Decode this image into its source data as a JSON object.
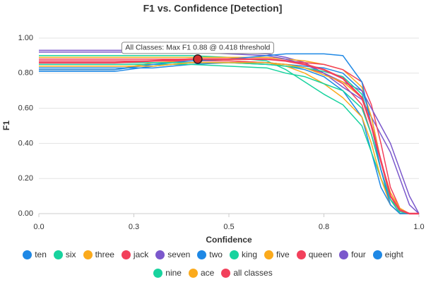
{
  "chart_data": {
    "type": "line",
    "title": "F1 vs. Confidence [Detection]",
    "x_label": "Confidence",
    "y_label": "F1",
    "x": [
      0,
      0.1,
      0.2,
      0.3,
      0.4,
      0.5,
      0.6,
      0.65,
      0.7,
      0.75,
      0.8,
      0.85,
      0.875,
      0.9,
      0.925,
      0.95,
      0.975,
      1.0
    ],
    "xlim": [
      0,
      1
    ],
    "ylim": [
      0,
      1
    ],
    "xticks": [
      {
        "value": 0,
        "label": "0.0"
      },
      {
        "value": 0.25,
        "label": "0.3"
      },
      {
        "value": 0.5,
        "label": "0.5"
      },
      {
        "value": 0.75,
        "label": "0.8"
      },
      {
        "value": 1,
        "label": "1.0"
      }
    ],
    "yticks": [
      {
        "value": 0,
        "label": "0.00"
      },
      {
        "value": 0.2,
        "label": "0.20"
      },
      {
        "value": 0.4,
        "label": "0.40"
      },
      {
        "value": 0.6,
        "label": "0.60"
      },
      {
        "value": 0.8,
        "label": "0.80"
      },
      {
        "value": 1,
        "label": "1.00"
      }
    ],
    "grid": true,
    "legend": "bottom",
    "series": [
      {
        "name": "ten",
        "color": "#1e88e5",
        "values": [
          0.81,
          0.81,
          0.81,
          0.84,
          0.86,
          0.86,
          0.85,
          0.84,
          0.82,
          0.78,
          0.7,
          0.55,
          0.35,
          0.15,
          0.05,
          0,
          0,
          0
        ]
      },
      {
        "name": "six",
        "color": "#18d39e",
        "values": [
          0.9,
          0.9,
          0.9,
          0.9,
          0.9,
          0.89,
          0.87,
          0.82,
          0.75,
          0.68,
          0.62,
          0.5,
          0.35,
          0.2,
          0.08,
          0.02,
          0,
          0
        ]
      },
      {
        "name": "three",
        "color": "#fbaa1c",
        "values": [
          0.82,
          0.82,
          0.82,
          0.86,
          0.87,
          0.87,
          0.86,
          0.84,
          0.8,
          0.74,
          0.66,
          0.55,
          0.4,
          0.2,
          0.05,
          0,
          0,
          0
        ]
      },
      {
        "name": "jack",
        "color": "#f2405b",
        "values": [
          0.87,
          0.87,
          0.87,
          0.87,
          0.87,
          0.87,
          0.86,
          0.85,
          0.83,
          0.8,
          0.74,
          0.62,
          0.45,
          0.25,
          0.08,
          0,
          0,
          0
        ]
      },
      {
        "name": "seven",
        "color": "#7b58cc",
        "values": [
          0.93,
          0.93,
          0.93,
          0.93,
          0.92,
          0.92,
          0.91,
          0.89,
          0.86,
          0.8,
          0.72,
          0.65,
          0.55,
          0.45,
          0.35,
          0.2,
          0.05,
          0
        ]
      },
      {
        "name": "two",
        "color": "#1e88e5",
        "values": [
          0.83,
          0.83,
          0.83,
          0.83,
          0.85,
          0.86,
          0.86,
          0.85,
          0.84,
          0.83,
          0.8,
          0.7,
          0.55,
          0.3,
          0.1,
          0.02,
          0,
          0
        ]
      },
      {
        "name": "king",
        "color": "#18d39e",
        "values": [
          0.85,
          0.85,
          0.85,
          0.85,
          0.85,
          0.84,
          0.83,
          0.8,
          0.78,
          0.74,
          0.7,
          0.6,
          0.45,
          0.25,
          0.08,
          0,
          0,
          0
        ]
      },
      {
        "name": "five",
        "color": "#fbaa1c",
        "values": [
          0.89,
          0.89,
          0.89,
          0.89,
          0.89,
          0.89,
          0.89,
          0.88,
          0.87,
          0.85,
          0.82,
          0.72,
          0.55,
          0.3,
          0.1,
          0.02,
          0,
          0
        ]
      },
      {
        "name": "queen",
        "color": "#f2405b",
        "values": [
          0.88,
          0.88,
          0.88,
          0.88,
          0.88,
          0.88,
          0.88,
          0.87,
          0.86,
          0.85,
          0.82,
          0.75,
          0.62,
          0.4,
          0.15,
          0.03,
          0,
          0
        ]
      },
      {
        "name": "four",
        "color": "#7b58cc",
        "values": [
          0.92,
          0.92,
          0.92,
          0.92,
          0.92,
          0.91,
          0.9,
          0.88,
          0.85,
          0.8,
          0.75,
          0.7,
          0.6,
          0.5,
          0.4,
          0.25,
          0.1,
          0
        ]
      },
      {
        "name": "eight",
        "color": "#1e88e5",
        "values": [
          0.82,
          0.82,
          0.82,
          0.85,
          0.87,
          0.88,
          0.9,
          0.91,
          0.91,
          0.91,
          0.9,
          0.75,
          0.5,
          0.25,
          0.05,
          0,
          0,
          0
        ]
      },
      {
        "name": "nine",
        "color": "#18d39e",
        "values": [
          0.86,
          0.86,
          0.86,
          0.86,
          0.86,
          0.86,
          0.85,
          0.84,
          0.83,
          0.81,
          0.78,
          0.68,
          0.5,
          0.3,
          0.1,
          0.01,
          0,
          0
        ]
      },
      {
        "name": "ace",
        "color": "#fbaa1c",
        "values": [
          0.84,
          0.84,
          0.84,
          0.84,
          0.86,
          0.86,
          0.86,
          0.85,
          0.83,
          0.79,
          0.75,
          0.66,
          0.5,
          0.3,
          0.12,
          0.03,
          0,
          0
        ]
      },
      {
        "name": "all classes",
        "color": "#f2405b",
        "values": [
          0.86,
          0.86,
          0.86,
          0.87,
          0.88,
          0.88,
          0.88,
          0.87,
          0.85,
          0.82,
          0.77,
          0.66,
          0.5,
          0.3,
          0.1,
          0.02,
          0,
          0
        ]
      }
    ],
    "annotation": {
      "text": "All Classes: Max F1 0.88 @ 0.418 threshold",
      "x": 0.418,
      "y": 0.88
    }
  }
}
